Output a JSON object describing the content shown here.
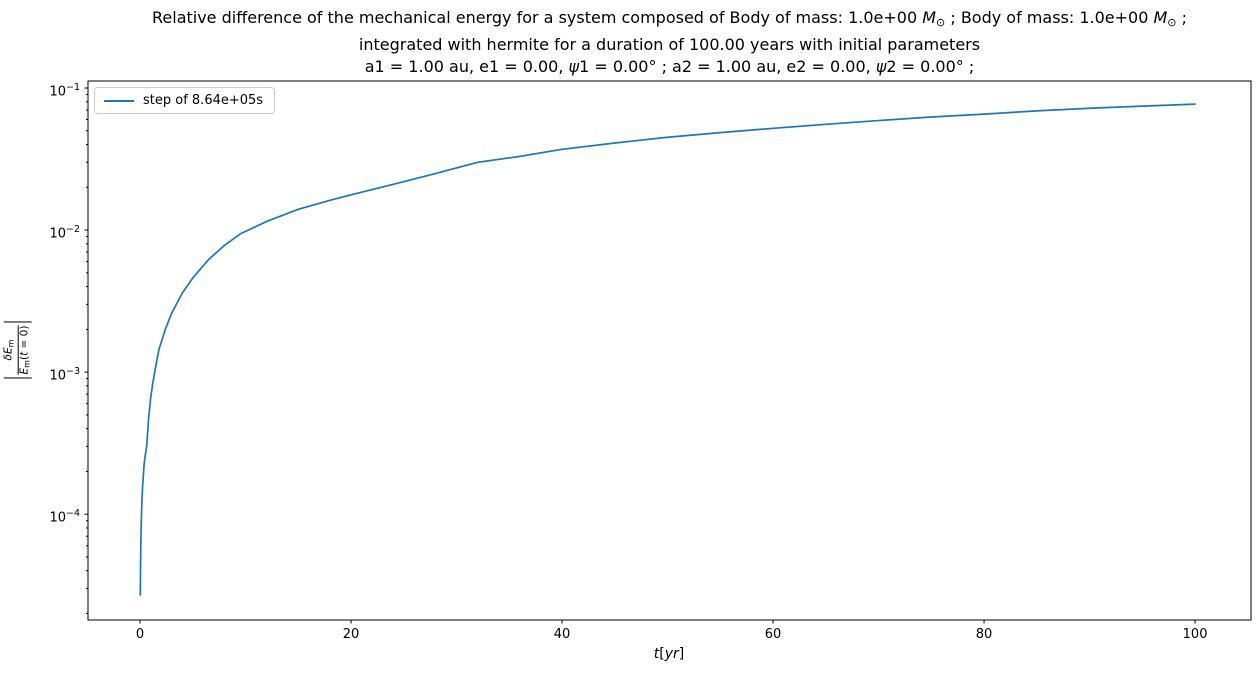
{
  "figure_title": {
    "lines": [
      {
        "segments": [
          {
            "t": "Relative difference of the mechanical energy for a system composed of Body of mass: 1.0e+00 "
          },
          {
            "t": "M",
            "i": true
          },
          {
            "t": "⊙",
            "sub": true
          },
          {
            "t": " ; Body of mass: 1.0e+00 "
          },
          {
            "t": "M",
            "i": true
          },
          {
            "t": "⊙",
            "sub": true
          },
          {
            "t": " ;"
          }
        ]
      },
      {
        "segments": [
          {
            "t": "integrated with hermite for a duration of 100.00 years with initial parameters"
          }
        ]
      },
      {
        "segments": [
          {
            "t": "a1 = 1.00 au, e1 = 0.00, "
          },
          {
            "t": "ψ",
            "i": true
          },
          {
            "t": "1 = 0.00° ; a2 = 1.00 au, e2 = 0.00, "
          },
          {
            "t": "ψ",
            "i": true
          },
          {
            "t": "2 = 0.00° ;"
          }
        ]
      }
    ]
  },
  "axis_labels": {
    "x_segments": [
      {
        "t": "t",
        "i": true
      },
      {
        "t": "["
      },
      {
        "t": "yr",
        "i": true
      },
      {
        "t": "]"
      }
    ],
    "y_numerator_segments": [
      {
        "t": "δ",
        "i": true
      },
      {
        "t": "E",
        "i": true
      },
      {
        "t": "m",
        "sub": true
      }
    ],
    "y_denominator_segments": [
      {
        "t": "E",
        "i": true
      },
      {
        "t": "m",
        "sub": true
      },
      {
        "t": "("
      },
      {
        "t": "t",
        "i": true
      },
      {
        "t": " = 0)"
      }
    ]
  },
  "chart_data": {
    "type": "line",
    "title": "Relative difference of the mechanical energy for a system composed of Body of mass: 1.0e+00 M⊙ ; Body of mass: 1.0e+00 M⊙ ;\nintegrated with hermite for a duration of 100.00 years with initial parameters\na1 = 1.00 au, e1 = 0.00, ψ1 = 0.00° ; a2 = 1.00 au, e2 = 0.00, ψ2 = 0.00° ;",
    "xlabel": "t[yr]",
    "ylabel": "|δE_m / E_m(t=0)|",
    "x_scale": "linear",
    "y_scale": "log",
    "xlim": [
      -4.93,
      105.3
    ],
    "ylim": [
      1.8e-05,
      0.112
    ],
    "x_ticks": [
      0,
      20,
      40,
      60,
      80,
      100
    ],
    "y_tick_exponents": [
      -1,
      -2,
      -3,
      -4
    ],
    "y_minor_ticks": true,
    "grid": false,
    "colors": {
      "line": "#1f77b4",
      "axis": "#000000",
      "legend_border": "#cccccc"
    },
    "legend": {
      "position": "upper left",
      "entries": [
        {
          "label": "step of 8.64e+05s",
          "color": "#1f77b4"
        }
      ]
    },
    "series": [
      {
        "name": "step of 8.64e+05s",
        "color": "#1f77b4",
        "points": [
          [
            0.027,
            2.7e-05
          ],
          [
            0.05,
            4.2e-05
          ],
          [
            0.08,
            6.2e-05
          ],
          [
            0.12,
            8.8e-05
          ],
          [
            0.18,
            0.000125
          ],
          [
            0.25,
            0.00016
          ],
          [
            0.31,
            0.000185
          ],
          [
            0.4,
            0.00023
          ],
          [
            0.5,
            0.00026
          ],
          [
            0.63,
            0.0003
          ],
          [
            0.8,
            0.00046
          ],
          [
            1.0,
            0.00065
          ],
          [
            1.2,
            0.00083
          ],
          [
            1.42,
            0.00103
          ],
          [
            1.8,
            0.00145
          ],
          [
            2.4,
            0.002
          ],
          [
            3.0,
            0.0026
          ],
          [
            4.0,
            0.0036
          ],
          [
            5.0,
            0.0046
          ],
          [
            6.5,
            0.0062
          ],
          [
            8.0,
            0.0078
          ],
          [
            9.5,
            0.0094
          ],
          [
            12,
            0.0115
          ],
          [
            15,
            0.014
          ],
          [
            18,
            0.0162
          ],
          [
            20,
            0.0177
          ],
          [
            24,
            0.021
          ],
          [
            28,
            0.025
          ],
          [
            32,
            0.03
          ],
          [
            36,
            0.033
          ],
          [
            40,
            0.037
          ],
          [
            45,
            0.041
          ],
          [
            50,
            0.045
          ],
          [
            55,
            0.0485
          ],
          [
            60,
            0.052
          ],
          [
            65,
            0.0555
          ],
          [
            70,
            0.059
          ],
          [
            75,
            0.0625
          ],
          [
            80,
            0.0655
          ],
          [
            85,
            0.069
          ],
          [
            90,
            0.072
          ],
          [
            95,
            0.0745
          ],
          [
            100,
            0.077
          ]
        ]
      }
    ]
  }
}
